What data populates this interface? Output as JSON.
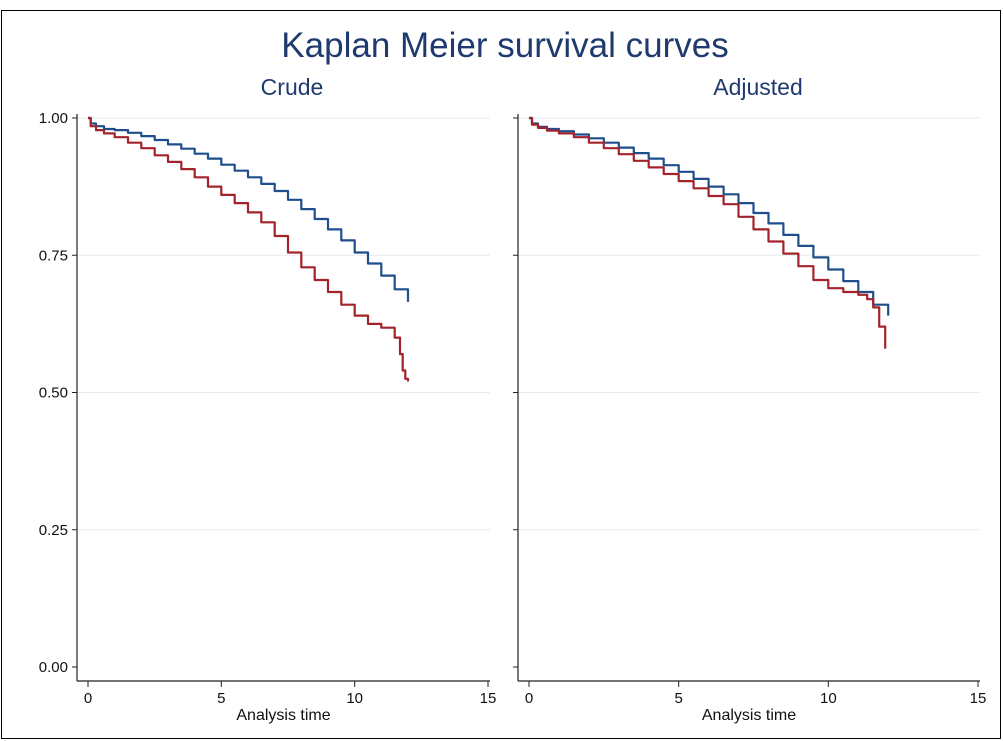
{
  "figure": {
    "title": "Kaplan Meier survival curves"
  },
  "colors": {
    "series_blue": "#1f4e8c",
    "series_red": "#a3232b",
    "title": "#1f3a6e",
    "grid": "#e6ebef"
  },
  "chart_data": [
    {
      "type": "line",
      "title": "Crude",
      "xlabel": "Analysis time",
      "ylabel": "",
      "xlim": [
        0,
        15
      ],
      "ylim": [
        0,
        1
      ],
      "xticks": [
        "0",
        "5",
        "10",
        "15"
      ],
      "yticks": [
        "0.00",
        "0.25",
        "0.50",
        "0.75",
        "1.00"
      ],
      "grid": true,
      "series": [
        {
          "color": "#1f4e8c",
          "x": [
            0,
            0.1,
            0.3,
            0.6,
            1,
            1.5,
            2,
            2.5,
            3,
            3.5,
            4,
            4.5,
            5,
            5.5,
            6,
            6.5,
            7,
            7.5,
            8,
            8.5,
            9,
            9.5,
            10,
            10.5,
            11,
            11.5,
            12
          ],
          "y": [
            1.0,
            0.99,
            0.985,
            0.98,
            0.978,
            0.973,
            0.967,
            0.96,
            0.952,
            0.944,
            0.935,
            0.926,
            0.915,
            0.904,
            0.892,
            0.88,
            0.867,
            0.851,
            0.834,
            0.816,
            0.797,
            0.777,
            0.755,
            0.735,
            0.713,
            0.688,
            0.665
          ]
        },
        {
          "color": "#a3232b",
          "x": [
            0,
            0.1,
            0.3,
            0.6,
            1,
            1.5,
            2,
            2.5,
            3,
            3.5,
            4,
            4.5,
            5,
            5.5,
            6,
            6.5,
            7,
            7.5,
            8,
            8.5,
            9,
            9.5,
            10,
            10.5,
            11,
            11.5,
            11.7,
            11.8,
            11.9,
            12
          ],
          "y": [
            1.0,
            0.985,
            0.978,
            0.972,
            0.965,
            0.955,
            0.945,
            0.932,
            0.92,
            0.907,
            0.892,
            0.875,
            0.86,
            0.845,
            0.828,
            0.81,
            0.785,
            0.755,
            0.728,
            0.705,
            0.683,
            0.66,
            0.64,
            0.625,
            0.618,
            0.6,
            0.57,
            0.54,
            0.525,
            0.52
          ]
        }
      ]
    },
    {
      "type": "line",
      "title": "Adjusted",
      "xlabel": "Analysis time",
      "ylabel": "",
      "xlim": [
        0,
        15
      ],
      "ylim": [
        0,
        1
      ],
      "xticks": [
        "0",
        "5",
        "10",
        "15"
      ],
      "yticks": [
        "0.00",
        "0.25",
        "0.50",
        "0.75",
        "1.00"
      ],
      "grid": true,
      "series": [
        {
          "color": "#1f4e8c",
          "x": [
            0,
            0.1,
            0.3,
            0.6,
            1,
            1.5,
            2,
            2.5,
            3,
            3.5,
            4,
            4.5,
            5,
            5.5,
            6,
            6.5,
            7,
            7.5,
            8,
            8.5,
            9,
            9.5,
            10,
            10.5,
            11,
            11.5,
            12
          ],
          "y": [
            1.0,
            0.99,
            0.984,
            0.98,
            0.976,
            0.97,
            0.963,
            0.955,
            0.946,
            0.936,
            0.926,
            0.914,
            0.902,
            0.889,
            0.875,
            0.861,
            0.845,
            0.827,
            0.808,
            0.787,
            0.767,
            0.746,
            0.724,
            0.703,
            0.683,
            0.66,
            0.64
          ]
        },
        {
          "color": "#a3232b",
          "x": [
            0,
            0.1,
            0.3,
            0.6,
            1,
            1.5,
            2,
            2.5,
            3,
            3.5,
            4,
            4.5,
            5,
            5.5,
            6,
            6.5,
            7,
            7.5,
            8,
            8.5,
            9,
            9.5,
            10,
            10.5,
            11,
            11.3,
            11.5,
            11.7,
            11.9
          ],
          "y": [
            1.0,
            0.988,
            0.982,
            0.977,
            0.972,
            0.965,
            0.955,
            0.945,
            0.934,
            0.922,
            0.91,
            0.898,
            0.885,
            0.872,
            0.858,
            0.843,
            0.82,
            0.797,
            0.775,
            0.753,
            0.73,
            0.705,
            0.69,
            0.683,
            0.678,
            0.67,
            0.655,
            0.62,
            0.58
          ]
        }
      ]
    }
  ]
}
